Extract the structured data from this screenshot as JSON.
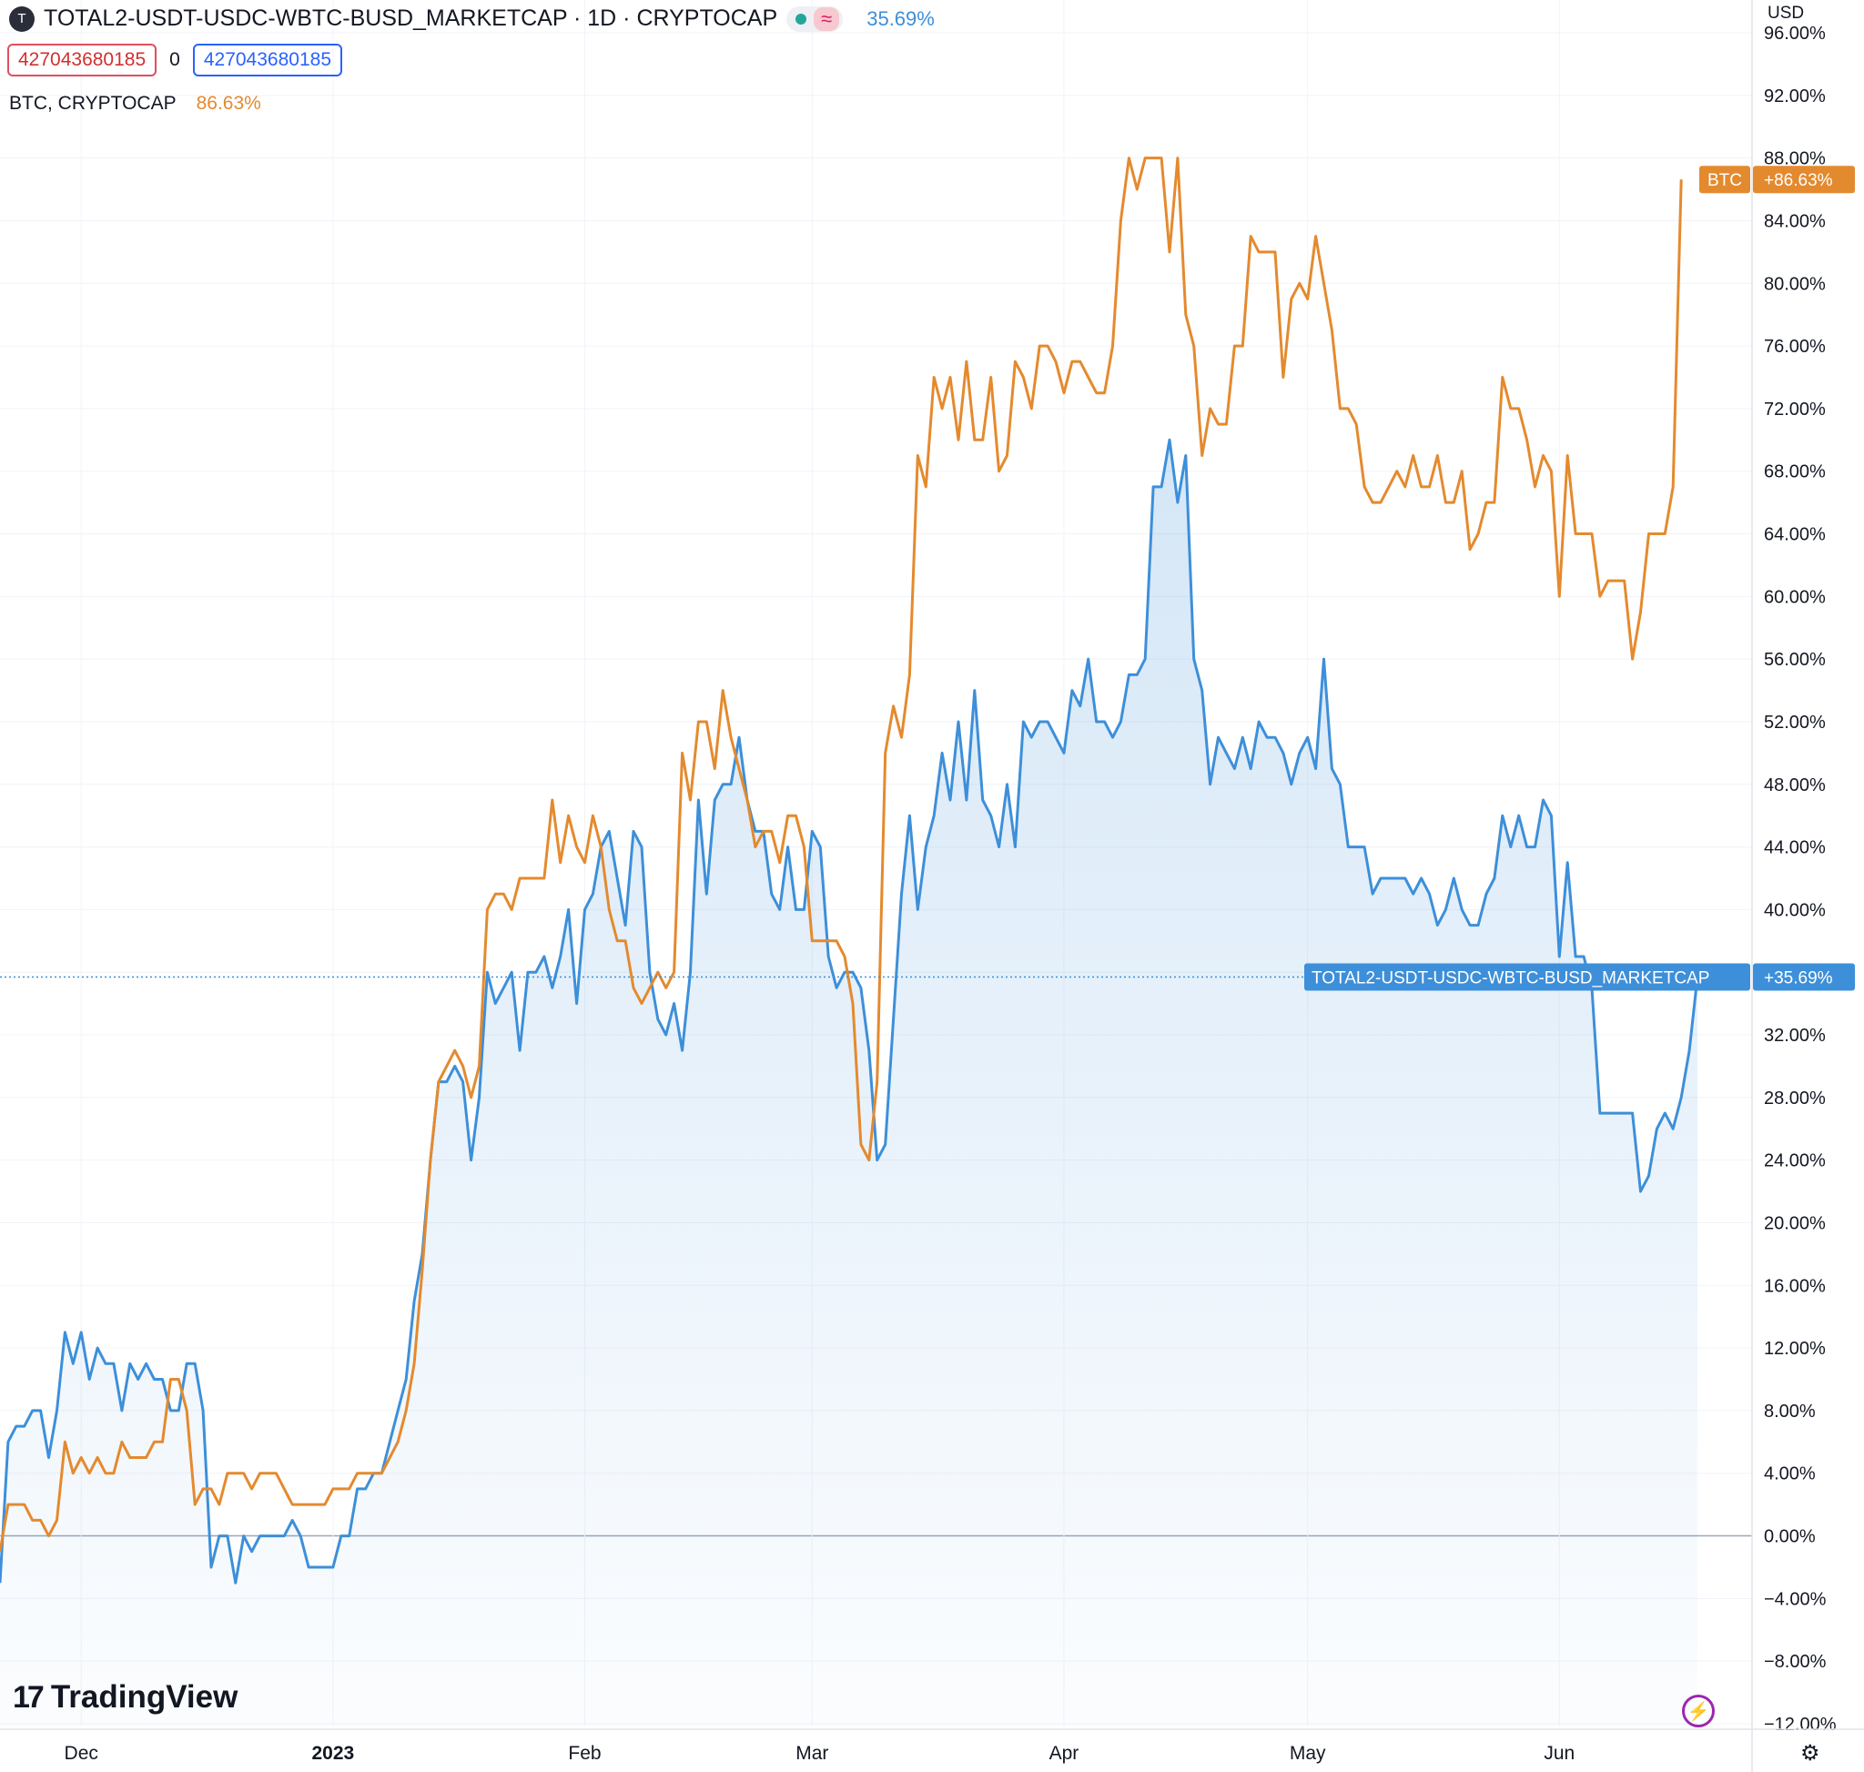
{
  "header": {
    "symbol_icon": "T",
    "title": "TOTAL2-USDT-USDC-WBTC-BUSD_MARKETCAP · 1D · CRYPTOCAP",
    "wave_icon": "≈",
    "percent": "35.69%",
    "value_low": "427043680185",
    "mid_value": "0",
    "value_high": "427043680185",
    "compare_label": "BTC, CRYPTOCAP",
    "compare_percent": "86.63%",
    "currency": "USD"
  },
  "branding": {
    "logo_text": "TradingView",
    "logo_mark": "17"
  },
  "colors": {
    "blue": "#3d8fd9",
    "orange": "#e48a2e",
    "red_box": "#e04f5f",
    "blue_box": "#2962ff"
  },
  "chart_data": {
    "type": "line",
    "y_unit": "percent",
    "ylim": [
      -12,
      100
    ],
    "yticks": [
      "96.00%",
      "92.00%",
      "88.00%",
      "84.00%",
      "80.00%",
      "76.00%",
      "72.00%",
      "68.00%",
      "64.00%",
      "60.00%",
      "56.00%",
      "52.00%",
      "48.00%",
      "44.00%",
      "40.00%",
      "36.00%",
      "32.00%",
      "28.00%",
      "24.00%",
      "20.00%",
      "16.00%",
      "12.00%",
      "8.00%",
      "4.00%",
      "0.00%",
      "−4.00%",
      "−8.00%",
      "−12.00%"
    ],
    "ytick_values": [
      96,
      92,
      88,
      84,
      80,
      76,
      72,
      68,
      64,
      60,
      56,
      52,
      48,
      44,
      40,
      36,
      32,
      28,
      24,
      20,
      16,
      12,
      8,
      4,
      0,
      -4,
      -8,
      -12
    ],
    "x_start": "2022-11-21",
    "xticks": [
      {
        "label": "Dec",
        "date": "2022-12-01",
        "bold": false
      },
      {
        "label": "2023",
        "date": "2023-01-01",
        "bold": true
      },
      {
        "label": "Feb",
        "date": "2023-02-01",
        "bold": false
      },
      {
        "label": "Mar",
        "date": "2023-03-01",
        "bold": false
      },
      {
        "label": "Apr",
        "date": "2023-04-01",
        "bold": false
      },
      {
        "label": "May",
        "date": "2023-05-01",
        "bold": false
      },
      {
        "label": "Jun",
        "date": "2023-06-01",
        "bold": false
      }
    ],
    "series": [
      {
        "name": "TOTAL2-USDT-USDC-WBTC-BUSD_MARKETCAP",
        "color": "#3d8fd9",
        "last_label": "+35.69%",
        "values": [
          -3,
          6,
          7,
          7,
          8,
          8,
          5,
          8,
          13,
          11,
          13,
          10,
          12,
          11,
          11,
          8,
          11,
          10,
          11,
          10,
          10,
          8,
          8,
          11,
          11,
          8,
          -2,
          0,
          0,
          -3,
          0,
          -1,
          0,
          0,
          0,
          0,
          1,
          0,
          -2,
          -2,
          -2,
          -2,
          0,
          0,
          3,
          3,
          4,
          4,
          6,
          8,
          10,
          15,
          18,
          24,
          29,
          29,
          30,
          29,
          24,
          28,
          36,
          34,
          35,
          36,
          31,
          36,
          36,
          37,
          35,
          37,
          40,
          34,
          40,
          41,
          44,
          45,
          42,
          39,
          45,
          44,
          36,
          33,
          32,
          34,
          31,
          36,
          47,
          41,
          47,
          48,
          48,
          51,
          47,
          45,
          45,
          41,
          40,
          44,
          40,
          40,
          45,
          44,
          37,
          35,
          36,
          36,
          35,
          31,
          24,
          25,
          33,
          41,
          46,
          40,
          44,
          46,
          50,
          47,
          52,
          47,
          54,
          47,
          46,
          44,
          48,
          44,
          52,
          51,
          52,
          52,
          51,
          50,
          54,
          53,
          56,
          52,
          52,
          51,
          52,
          55,
          55,
          56,
          67,
          67,
          70,
          66,
          69,
          56,
          54,
          48,
          51,
          50,
          49,
          51,
          49,
          52,
          51,
          51,
          50,
          48,
          50,
          51,
          49,
          56,
          49,
          48,
          44,
          44,
          44,
          41,
          42,
          42,
          42,
          42,
          41,
          42,
          41,
          39,
          40,
          42,
          40,
          39,
          39,
          41,
          42,
          46,
          44,
          46,
          44,
          44,
          47,
          46,
          37,
          43,
          37,
          37,
          35,
          27,
          27,
          27,
          27,
          27,
          22,
          23,
          26,
          27,
          26,
          28,
          31,
          35.69
        ]
      },
      {
        "name": "BTC",
        "color": "#e48a2e",
        "last_label": "+86.63%",
        "values": [
          -1,
          2,
          2,
          2,
          1,
          1,
          0,
          1,
          6,
          4,
          5,
          4,
          5,
          4,
          4,
          6,
          5,
          5,
          5,
          6,
          6,
          10,
          10,
          8,
          2,
          3,
          3,
          2,
          4,
          4,
          4,
          3,
          4,
          4,
          4,
          3,
          2,
          2,
          2,
          2,
          2,
          3,
          3,
          3,
          4,
          4,
          4,
          4,
          5,
          6,
          8,
          11,
          17,
          24,
          29,
          30,
          31,
          30,
          28,
          30,
          40,
          41,
          41,
          40,
          42,
          42,
          42,
          42,
          47,
          43,
          46,
          44,
          43,
          46,
          44,
          40,
          38,
          38,
          35,
          34,
          35,
          36,
          35,
          36,
          50,
          47,
          52,
          52,
          49,
          54,
          51,
          49,
          47,
          44,
          45,
          45,
          43,
          46,
          46,
          44,
          38,
          38,
          38,
          38,
          37,
          34,
          25,
          24,
          29,
          50,
          53,
          51,
          55,
          69,
          67,
          74,
          72,
          74,
          70,
          75,
          70,
          70,
          74,
          68,
          69,
          75,
          74,
          72,
          76,
          76,
          75,
          73,
          75,
          75,
          74,
          73,
          73,
          76,
          84,
          88,
          86,
          88,
          88,
          88,
          82,
          88,
          78,
          76,
          69,
          72,
          71,
          71,
          76,
          76,
          83,
          82,
          82,
          82,
          74,
          79,
          80,
          79,
          83,
          80,
          77,
          72,
          72,
          71,
          67,
          66,
          66,
          67,
          68,
          67,
          69,
          67,
          67,
          69,
          66,
          66,
          68,
          63,
          64,
          66,
          66,
          74,
          72,
          72,
          70,
          67,
          69,
          68,
          60,
          69,
          64,
          64,
          64,
          60,
          61,
          61,
          61,
          56,
          59,
          64,
          64,
          64,
          67,
          86.63
        ]
      }
    ]
  }
}
